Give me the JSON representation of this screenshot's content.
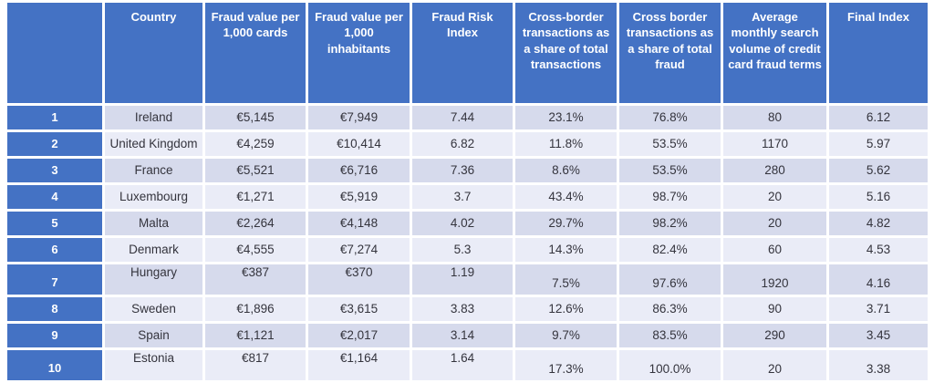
{
  "colors": {
    "header_blue": "#4472C4",
    "row_dark": "#D6DAEC",
    "row_light": "#EAECF7",
    "cell_text": "#34343D",
    "background": "#FFFFFF"
  },
  "chart_data": {
    "type": "table",
    "title": "",
    "columns": [
      "",
      "Country",
      "Fraud value per 1,000 cards",
      "Fraud value per 1,000 inhabitants",
      "Fraud Risk Index",
      "Cross-border transactions as a share of total transactions",
      "Cross border transactions as a share of total fraud",
      "Average monthly search volume of credit card fraud terms",
      "Final Index"
    ],
    "rows": [
      [
        "1",
        "Ireland",
        "€5,145",
        "€7,949",
        "7.44",
        "23.1%",
        "76.8%",
        "80",
        "6.12"
      ],
      [
        "2",
        "United Kingdom",
        "€4,259",
        "€10,414",
        "6.82",
        "11.8%",
        "53.5%",
        "1170",
        "5.97"
      ],
      [
        "3",
        "France",
        "€5,521",
        "€6,716",
        "7.36",
        "8.6%",
        "53.5%",
        "280",
        "5.62"
      ],
      [
        "4",
        "Luxembourg",
        "€1,271",
        "€5,919",
        "3.7",
        "43.4%",
        "98.7%",
        "20",
        "5.16"
      ],
      [
        "5",
        "Malta",
        "€2,264",
        "€4,148",
        "4.02",
        "29.7%",
        "98.2%",
        "20",
        "4.82"
      ],
      [
        "6",
        "Denmark",
        "€4,555",
        "€7,274",
        "5.3",
        "14.3%",
        "82.4%",
        "60",
        "4.53"
      ],
      [
        "7",
        "Hungary",
        "€387",
        "€370",
        "1.19",
        "7.5%",
        "97.6%",
        "1920",
        "4.16"
      ],
      [
        "8",
        "Sweden",
        "€1,896",
        "€3,615",
        "3.83",
        "12.6%",
        "86.3%",
        "90",
        "3.71"
      ],
      [
        "9",
        "Spain",
        "€1,121",
        "€2,017",
        "3.14",
        "9.7%",
        "83.5%",
        "290",
        "3.45"
      ],
      [
        "10",
        "Estonia",
        "€817",
        "€1,164",
        "1.64",
        "17.3%",
        "100.0%",
        "20",
        "3.38"
      ]
    ]
  },
  "table": {
    "headers": [
      "",
      "Country",
      "Fraud value per 1,000 cards",
      "Fraud value per 1,000 inhabitants",
      "Fraud Risk Index",
      "Cross-border transactions as a share of total transactions",
      "Cross border transactions as a share of total fraud",
      "Average monthly search volume of credit card fraud terms",
      "Final Index"
    ],
    "rows": [
      {
        "rank": "1",
        "country": "Ireland",
        "fraud_value_per_1000_cards": "€5,145",
        "fraud_value_per_1000_inhabitants": "€7,949",
        "fraud_risk_index": "7.44",
        "cross_border_share_of_transactions": "23.1%",
        "cross_border_share_of_fraud": "76.8%",
        "avg_monthly_search_volume": "80",
        "final_index": "6.12",
        "offset": false
      },
      {
        "rank": "2",
        "country": "United Kingdom",
        "fraud_value_per_1000_cards": "€4,259",
        "fraud_value_per_1000_inhabitants": "€10,414",
        "fraud_risk_index": "6.82",
        "cross_border_share_of_transactions": "11.8%",
        "cross_border_share_of_fraud": "53.5%",
        "avg_monthly_search_volume": "1170",
        "final_index": "5.97",
        "offset": false
      },
      {
        "rank": "3",
        "country": "France",
        "fraud_value_per_1000_cards": "€5,521",
        "fraud_value_per_1000_inhabitants": "€6,716",
        "fraud_risk_index": "7.36",
        "cross_border_share_of_transactions": "8.6%",
        "cross_border_share_of_fraud": "53.5%",
        "avg_monthly_search_volume": "280",
        "final_index": "5.62",
        "offset": false
      },
      {
        "rank": "4",
        "country": "Luxembourg",
        "fraud_value_per_1000_cards": "€1,271",
        "fraud_value_per_1000_inhabitants": "€5,919",
        "fraud_risk_index": "3.7",
        "cross_border_share_of_transactions": "43.4%",
        "cross_border_share_of_fraud": "98.7%",
        "avg_monthly_search_volume": "20",
        "final_index": "5.16",
        "offset": false
      },
      {
        "rank": "5",
        "country": "Malta",
        "fraud_value_per_1000_cards": "€2,264",
        "fraud_value_per_1000_inhabitants": "€4,148",
        "fraud_risk_index": "4.02",
        "cross_border_share_of_transactions": "29.7%",
        "cross_border_share_of_fraud": "98.2%",
        "avg_monthly_search_volume": "20",
        "final_index": "4.82",
        "offset": false
      },
      {
        "rank": "6",
        "country": "Denmark",
        "fraud_value_per_1000_cards": "€4,555",
        "fraud_value_per_1000_inhabitants": "€7,274",
        "fraud_risk_index": "5.3",
        "cross_border_share_of_transactions": "14.3%",
        "cross_border_share_of_fraud": "82.4%",
        "avg_monthly_search_volume": "60",
        "final_index": "4.53",
        "offset": false
      },
      {
        "rank": "7",
        "country": "Hungary",
        "fraud_value_per_1000_cards": "€387",
        "fraud_value_per_1000_inhabitants": "€370",
        "fraud_risk_index": "1.19",
        "cross_border_share_of_transactions": "7.5%",
        "cross_border_share_of_fraud": "97.6%",
        "avg_monthly_search_volume": "1920",
        "final_index": "4.16",
        "offset": true
      },
      {
        "rank": "8",
        "country": "Sweden",
        "fraud_value_per_1000_cards": "€1,896",
        "fraud_value_per_1000_inhabitants": "€3,615",
        "fraud_risk_index": "3.83",
        "cross_border_share_of_transactions": "12.6%",
        "cross_border_share_of_fraud": "86.3%",
        "avg_monthly_search_volume": "90",
        "final_index": "3.71",
        "offset": false
      },
      {
        "rank": "9",
        "country": "Spain",
        "fraud_value_per_1000_cards": "€1,121",
        "fraud_value_per_1000_inhabitants": "€2,017",
        "fraud_risk_index": "3.14",
        "cross_border_share_of_transactions": "9.7%",
        "cross_border_share_of_fraud": "83.5%",
        "avg_monthly_search_volume": "290",
        "final_index": "3.45",
        "offset": false
      },
      {
        "rank": "10",
        "country": "Estonia",
        "fraud_value_per_1000_cards": "€817",
        "fraud_value_per_1000_inhabitants": "€1,164",
        "fraud_risk_index": "1.64",
        "cross_border_share_of_transactions": "17.3%",
        "cross_border_share_of_fraud": "100.0%",
        "avg_monthly_search_volume": "20",
        "final_index": "3.38",
        "offset": true
      }
    ]
  }
}
